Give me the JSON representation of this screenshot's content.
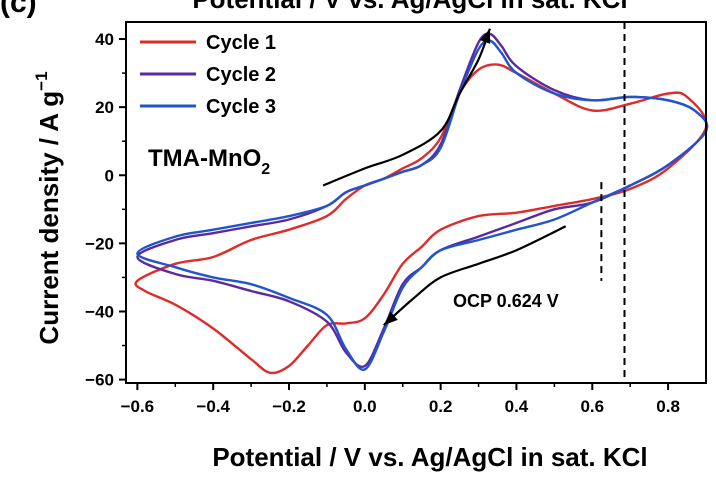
{
  "panel_label": "(c)",
  "chart_data": {
    "type": "line",
    "title": "Potential / V vs. Ag/AgCl in sat. KCl",
    "xlabel": "Potential / V vs. Ag/AgCl in sat. KCl",
    "ylabel_main": "Current density / A g",
    "ylabel_sup": "−1",
    "xlim": [
      -0.63,
      0.9
    ],
    "ylim": [
      -61,
      45
    ],
    "xticks": [
      -0.6,
      -0.4,
      -0.2,
      0.0,
      0.2,
      0.4,
      0.6,
      0.8
    ],
    "xtick_labels": [
      "−0.6",
      "−0.4",
      "−0.2",
      "0.0",
      "0.2",
      "0.4",
      "0.6",
      "0.8"
    ],
    "yticks": [
      -60,
      -40,
      -20,
      0,
      20,
      40
    ],
    "ytick_labels": [
      "−60",
      "−40",
      "−20",
      "0",
      "20",
      "40"
    ],
    "grid": false,
    "legend_position": "top-left",
    "series": [
      {
        "name": "Cycle 1",
        "color": "#e02b2b",
        "points": [
          [
            -0.6,
            -31
          ],
          [
            -0.5,
            -26
          ],
          [
            -0.4,
            -24
          ],
          [
            -0.3,
            -19
          ],
          [
            -0.2,
            -16
          ],
          [
            -0.1,
            -12
          ],
          [
            -0.05,
            -7
          ],
          [
            0.0,
            -3
          ],
          [
            0.05,
            -1
          ],
          [
            0.1,
            2
          ],
          [
            0.15,
            5
          ],
          [
            0.2,
            11
          ],
          [
            0.25,
            24
          ],
          [
            0.3,
            31
          ],
          [
            0.35,
            32.5
          ],
          [
            0.4,
            30
          ],
          [
            0.5,
            24
          ],
          [
            0.6,
            19
          ],
          [
            0.7,
            21
          ],
          [
            0.8,
            24
          ],
          [
            0.85,
            23
          ],
          [
            0.9,
            14
          ],
          [
            0.8,
            2
          ],
          [
            0.7,
            -4
          ],
          [
            0.6,
            -7
          ],
          [
            0.5,
            -9
          ],
          [
            0.4,
            -11
          ],
          [
            0.3,
            -12
          ],
          [
            0.2,
            -16
          ],
          [
            0.15,
            -21
          ],
          [
            0.1,
            -26
          ],
          [
            0.05,
            -35
          ],
          [
            0.0,
            -42
          ],
          [
            -0.05,
            -43.5
          ],
          [
            -0.1,
            -44
          ],
          [
            -0.15,
            -50
          ],
          [
            -0.2,
            -56
          ],
          [
            -0.25,
            -58
          ],
          [
            -0.3,
            -54
          ],
          [
            -0.4,
            -45
          ],
          [
            -0.5,
            -38
          ],
          [
            -0.58,
            -34
          ],
          [
            -0.6,
            -31
          ]
        ]
      },
      {
        "name": "Cycle 2",
        "color": "#5a2aa0",
        "points": [
          [
            -0.6,
            -24
          ],
          [
            -0.5,
            -19
          ],
          [
            -0.4,
            -17
          ],
          [
            -0.3,
            -15
          ],
          [
            -0.2,
            -13
          ],
          [
            -0.1,
            -9
          ],
          [
            -0.05,
            -5
          ],
          [
            0.0,
            -3
          ],
          [
            0.05,
            -1
          ],
          [
            0.1,
            1
          ],
          [
            0.15,
            3
          ],
          [
            0.2,
            9
          ],
          [
            0.25,
            25
          ],
          [
            0.3,
            39
          ],
          [
            0.33,
            41.5
          ],
          [
            0.36,
            38
          ],
          [
            0.4,
            32
          ],
          [
            0.5,
            25
          ],
          [
            0.6,
            22
          ],
          [
            0.7,
            23
          ],
          [
            0.8,
            22
          ],
          [
            0.87,
            19
          ],
          [
            0.9,
            13
          ],
          [
            0.8,
            3
          ],
          [
            0.7,
            -3
          ],
          [
            0.6,
            -8
          ],
          [
            0.5,
            -10
          ],
          [
            0.4,
            -14
          ],
          [
            0.3,
            -18
          ],
          [
            0.2,
            -22
          ],
          [
            0.15,
            -27
          ],
          [
            0.1,
            -32
          ],
          [
            0.05,
            -45
          ],
          [
            0.0,
            -56
          ],
          [
            -0.05,
            -52
          ],
          [
            -0.1,
            -43
          ],
          [
            -0.2,
            -37
          ],
          [
            -0.3,
            -34
          ],
          [
            -0.4,
            -31
          ],
          [
            -0.5,
            -29
          ],
          [
            -0.6,
            -24
          ]
        ]
      },
      {
        "name": "Cycle 3",
        "color": "#2255cc",
        "points": [
          [
            -0.6,
            -23
          ],
          [
            -0.5,
            -18
          ],
          [
            -0.4,
            -16
          ],
          [
            -0.3,
            -14
          ],
          [
            -0.2,
            -12
          ],
          [
            -0.1,
            -9
          ],
          [
            -0.05,
            -5
          ],
          [
            0.0,
            -3
          ],
          [
            0.05,
            -1
          ],
          [
            0.1,
            1
          ],
          [
            0.15,
            3
          ],
          [
            0.2,
            8
          ],
          [
            0.25,
            24
          ],
          [
            0.3,
            37
          ],
          [
            0.33,
            39.5
          ],
          [
            0.36,
            36
          ],
          [
            0.4,
            30
          ],
          [
            0.5,
            24
          ],
          [
            0.6,
            22
          ],
          [
            0.7,
            23
          ],
          [
            0.8,
            22
          ],
          [
            0.87,
            19
          ],
          [
            0.9,
            13
          ],
          [
            0.8,
            3
          ],
          [
            0.7,
            -3
          ],
          [
            0.6,
            -8
          ],
          [
            0.5,
            -13
          ],
          [
            0.4,
            -16
          ],
          [
            0.3,
            -19
          ],
          [
            0.2,
            -22
          ],
          [
            0.15,
            -27
          ],
          [
            0.1,
            -33
          ],
          [
            0.05,
            -46
          ],
          [
            0.0,
            -57
          ],
          [
            -0.05,
            -51
          ],
          [
            -0.1,
            -41
          ],
          [
            -0.2,
            -36
          ],
          [
            -0.3,
            -32
          ],
          [
            -0.4,
            -30
          ],
          [
            -0.5,
            -27
          ],
          [
            -0.6,
            -23
          ]
        ]
      }
    ],
    "annotations": {
      "material_main": "TMA-MnO",
      "material_sub": "2",
      "ocp_label": "OCP 0.624 V",
      "ocp_x": 0.624,
      "ocp_ymin": -31,
      "ocp_ymax": -2,
      "vline_x": 0.685,
      "arrow_anodic": [
        [
          -0.11,
          -3
        ],
        [
          0.0,
          2
        ],
        [
          0.1,
          6
        ],
        [
          0.2,
          13
        ],
        [
          0.25,
          24
        ],
        [
          0.3,
          34
        ],
        [
          0.33,
          43
        ]
      ],
      "arrow_cathodic": [
        [
          0.53,
          -15
        ],
        [
          0.4,
          -22
        ],
        [
          0.3,
          -26
        ],
        [
          0.2,
          -30
        ],
        [
          0.13,
          -36
        ],
        [
          0.05,
          -44
        ]
      ]
    }
  }
}
